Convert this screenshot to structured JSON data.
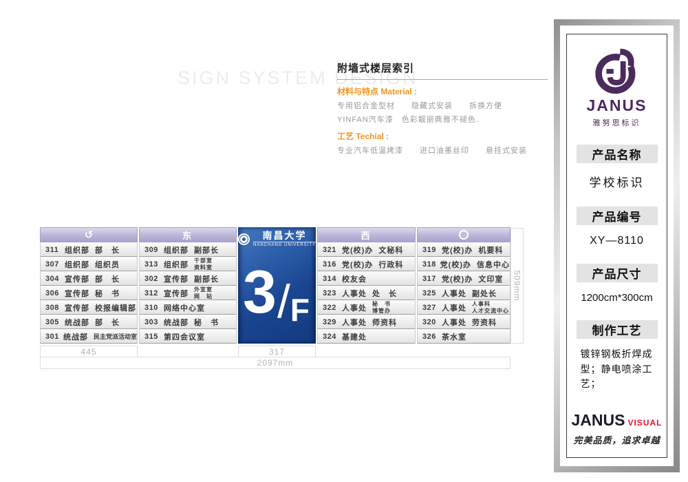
{
  "watermark": "SIGN SYSTEM DESIGN",
  "spec": {
    "title": "附墙式楼层索引",
    "material_label": "材料与特点 Material :",
    "material_line1": "专用铝合金型材　　隐藏式安装　　拆换方便",
    "material_line2": "YINFAN汽车漆　色彩靓丽典雅不褪色.",
    "craft_label": "工艺 Techial :",
    "craft_line1": "专业汽车低温烤漆　　进口油墨丝印　　悬挂式安装"
  },
  "sign": {
    "university": {
      "name": "南昌大学",
      "name_en": "NANCHANG UNIVERSITY"
    },
    "floor": {
      "number": "3",
      "separator": "/",
      "suffix": "F"
    },
    "columns": [
      {
        "header": "",
        "icon": "return-arrow",
        "rows": [
          {
            "no": "311",
            "dept": "组织部",
            "title": "部　长"
          },
          {
            "no": "307",
            "dept": "组织部",
            "title": "组织员"
          },
          {
            "no": "304",
            "dept": "宣传部",
            "title": "部　长"
          },
          {
            "no": "306",
            "dept": "宣传部",
            "title": "秘　书"
          },
          {
            "no": "308",
            "dept": "宣传部",
            "title": "校报编辑部"
          },
          {
            "no": "305",
            "dept": "统战部",
            "title": "部　长"
          },
          {
            "no": "301",
            "dept": "统战部",
            "title": "民主党派活动室",
            "small": true
          }
        ]
      },
      {
        "header": "东",
        "icon": null,
        "rows": [
          {
            "no": "309",
            "dept": "组织部",
            "title": "副部长"
          },
          {
            "no": "313",
            "dept": "组织部",
            "title": "干部室",
            "title2": "资料室"
          },
          {
            "no": "302",
            "dept": "宣传部",
            "title": "副部长"
          },
          {
            "no": "312",
            "dept": "宣传部",
            "title": "外宣室",
            "title2": "网　站"
          },
          {
            "no": "310",
            "dept": "网络中心室",
            "title": ""
          },
          {
            "no": "303",
            "dept": "统战部",
            "title": "秘　书"
          },
          {
            "no": "315",
            "dept": "第四会议室",
            "title": ""
          }
        ]
      },
      {
        "header": "西",
        "icon": null,
        "rows": [
          {
            "no": "321",
            "dept": "党(校)办",
            "title": "文秘科"
          },
          {
            "no": "316",
            "dept": "党(校)办",
            "title": "行政科"
          },
          {
            "no": "314",
            "dept": "校友会",
            "title": ""
          },
          {
            "no": "323",
            "dept": "人事处",
            "title": "处　长"
          },
          {
            "no": "322",
            "dept": "人事处",
            "title": "秘　书",
            "title2": "博管办"
          },
          {
            "no": "329",
            "dept": "人事处",
            "title": "师资科"
          },
          {
            "no": "324",
            "dept": "基建处",
            "title": ""
          }
        ]
      },
      {
        "header": "",
        "icon": "right-arrow",
        "rows": [
          {
            "no": "319",
            "dept": "党(校)办",
            "title": "机要科"
          },
          {
            "no": "318",
            "dept": "党(校)办",
            "title": "信息中心"
          },
          {
            "no": "317",
            "dept": "党(校)办",
            "title": "文印室"
          },
          {
            "no": "325",
            "dept": "人事处",
            "title": "副处长"
          },
          {
            "no": "327",
            "dept": "人事处",
            "title": "人事科",
            "title2": "人才交流中心"
          },
          {
            "no": "320",
            "dept": "人事处",
            "title": "劳资科"
          },
          {
            "no": "326",
            "dept": "茶水室",
            "title": ""
          }
        ]
      }
    ],
    "dimensions": {
      "left_width": "445",
      "center_width": "317",
      "total_width": "2097mm",
      "height": "509mm"
    }
  },
  "panel": {
    "brand": {
      "name": "JANUS",
      "name_cn": "雅努思标识"
    },
    "sections": [
      {
        "label": "产品名称",
        "value": "学校标识"
      },
      {
        "label": "产品编号",
        "value": "XY—8110"
      },
      {
        "label": "产品尺寸",
        "value": "1200cm*300cm"
      },
      {
        "label": "制作工艺",
        "value": "镀锌钢板折焊成型；静电喷涂工艺；"
      }
    ],
    "footer": {
      "brand": "JANUS",
      "suffix": "VISUAL",
      "slogan": "完美品质，追求卓越"
    }
  },
  "icons": {
    "return_arrow_glyph": "↺",
    "right_arrow_glyph": "→"
  },
  "colors": {
    "accent_orange": "#f7941d",
    "header_lavender": "#b5acd4",
    "panel_blue": "#1c4894",
    "logo_purple": "#4b2a5e",
    "brand_red": "#e8112d"
  }
}
